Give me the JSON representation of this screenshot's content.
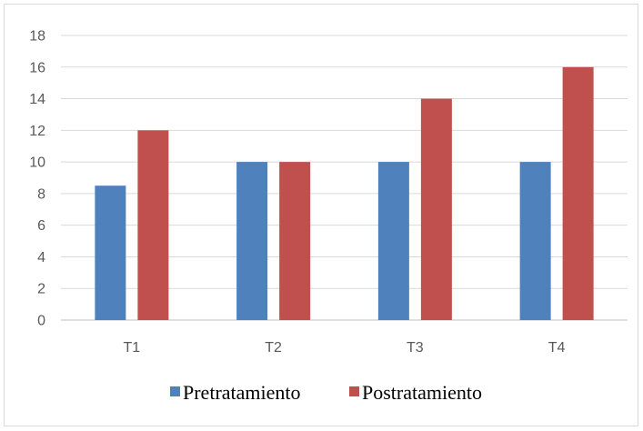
{
  "chart_data": {
    "type": "bar",
    "categories": [
      "T1",
      "T2",
      "T3",
      "T4"
    ],
    "series": [
      {
        "name": "Pretratamiento",
        "values": [
          8.5,
          10,
          10,
          10
        ],
        "color": "#4F81BD"
      },
      {
        "name": "Postratamiento",
        "values": [
          12,
          10,
          14,
          16
        ],
        "color": "#C0504D"
      }
    ],
    "ylim": [
      0,
      18
    ],
    "yticks": [
      0,
      2,
      4,
      6,
      8,
      10,
      12,
      14,
      16,
      18
    ],
    "grid": true,
    "legend": "bottom",
    "title": "",
    "xlabel": "",
    "ylabel": ""
  }
}
